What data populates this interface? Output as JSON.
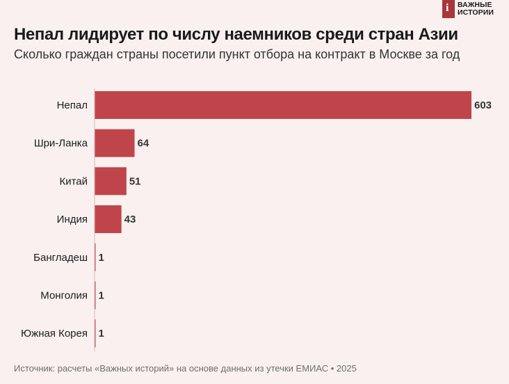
{
  "brand": {
    "line1": "ВАЖНЫЕ",
    "line2": "ИСТОРИИ",
    "mark": "i"
  },
  "source": "Источник: расчеты «Важных историй» на основе данных из утечки ЕМИАС • 2025",
  "colors": {
    "bar": "#c0454a",
    "background": "#faf0f0"
  },
  "chart_data": {
    "type": "bar",
    "orientation": "horizontal",
    "title": "Непал лидирует по числу наемников среди стран Азии",
    "subtitle": "Сколько граждан страны посетили пункт отбора на контракт в Москве за год",
    "categories": [
      "Непал",
      "Шри-Ланка",
      "Китай",
      "Индия",
      "Бангладеш",
      "Монголия",
      "Южная Корея"
    ],
    "values": [
      603,
      64,
      51,
      43,
      1,
      1,
      1
    ],
    "value_labels": [
      "603",
      "64",
      "51",
      "43",
      "1",
      "1",
      "1"
    ],
    "xlim": [
      0,
      603
    ],
    "grid": false,
    "legend": "none"
  }
}
